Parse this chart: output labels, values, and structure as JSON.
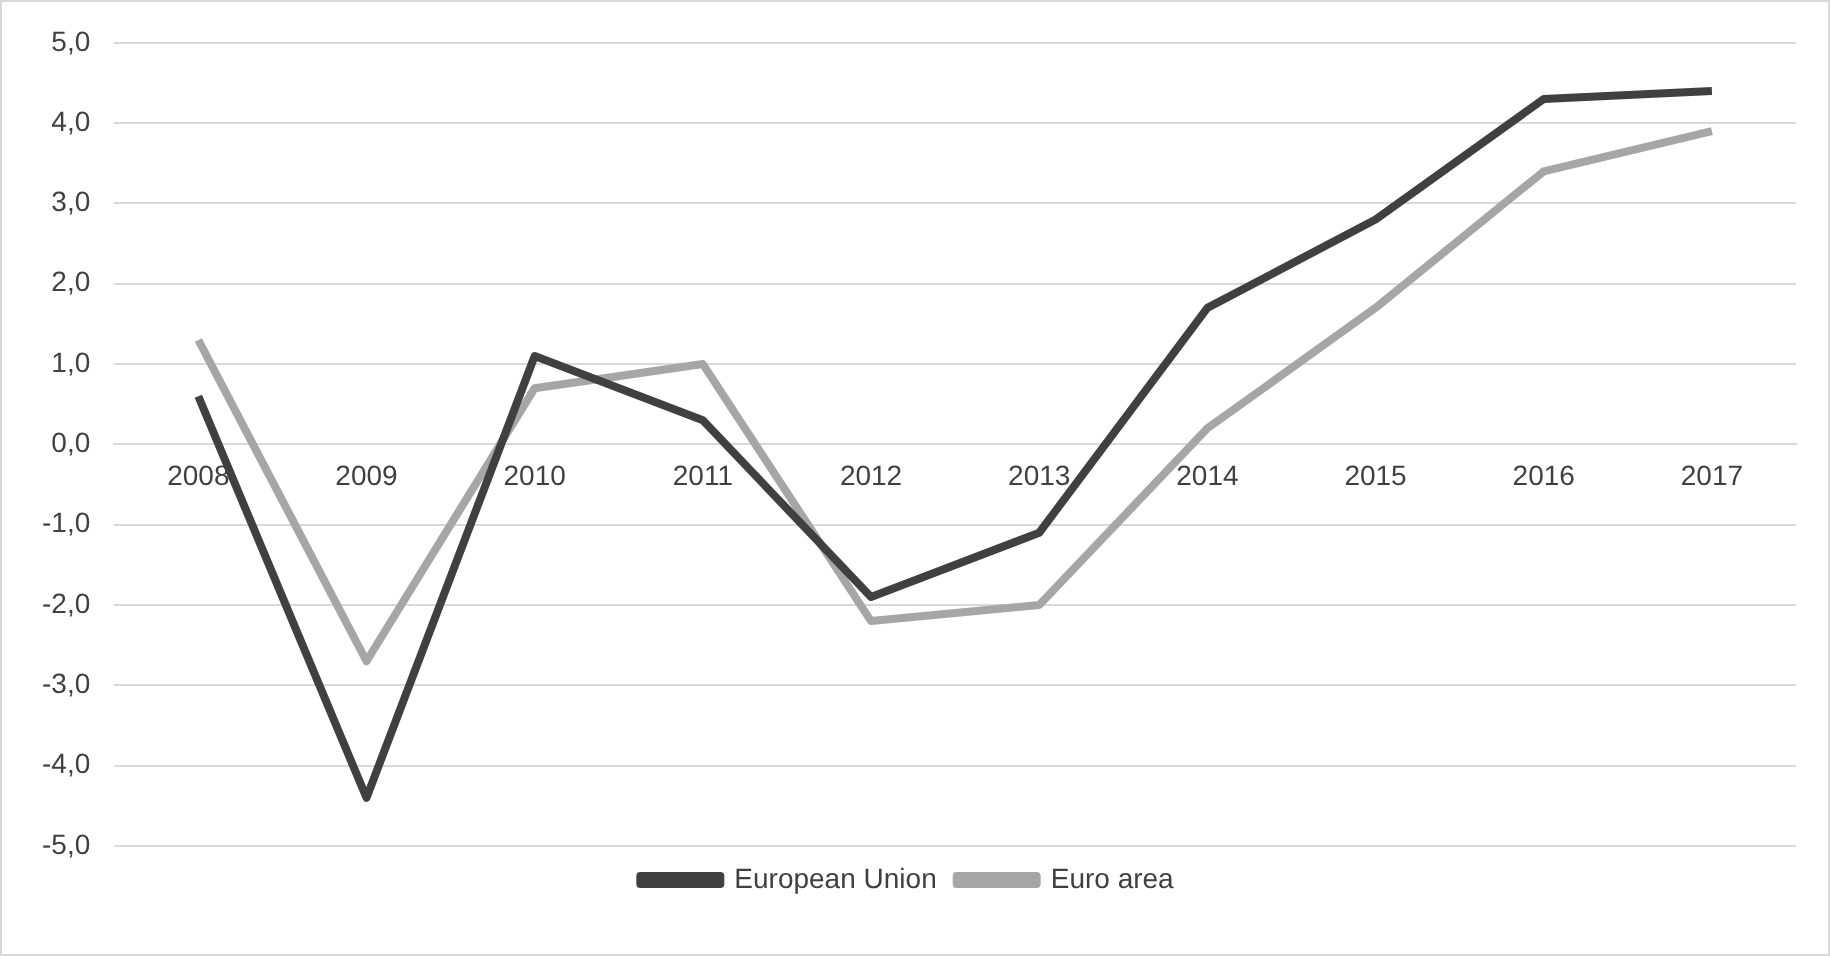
{
  "chart_data": {
    "type": "line",
    "categories": [
      "2008",
      "2009",
      "2010",
      "2011",
      "2012",
      "2013",
      "2014",
      "2015",
      "2016",
      "2017"
    ],
    "series": [
      {
        "name": "European Union",
        "color": "#404040",
        "values": [
          0.6,
          -4.4,
          1.1,
          0.3,
          -1.9,
          -1.1,
          1.7,
          2.8,
          4.3,
          4.4
        ]
      },
      {
        "name": "Euro area",
        "color": "#a6a6a6",
        "values": [
          1.3,
          -2.7,
          0.7,
          1.0,
          -2.2,
          -2.0,
          0.2,
          1.7,
          3.4,
          3.9
        ]
      }
    ],
    "ylim": [
      -5,
      5
    ],
    "yticks": [
      {
        "value": -5,
        "label": "-5,0"
      },
      {
        "value": -4,
        "label": "-4,0"
      },
      {
        "value": -3,
        "label": "-3,0"
      },
      {
        "value": -2,
        "label": "-2,0"
      },
      {
        "value": -1,
        "label": "-1,0"
      },
      {
        "value": 0,
        "label": "0,0"
      },
      {
        "value": 1,
        "label": "1,0"
      },
      {
        "value": 2,
        "label": "2,0"
      },
      {
        "value": 3,
        "label": "3,0"
      },
      {
        "value": 4,
        "label": "4,0"
      },
      {
        "value": 5,
        "label": "5,0"
      }
    ],
    "grid": "y",
    "legend": "bottom",
    "marker": "none",
    "line_style": "solid"
  }
}
